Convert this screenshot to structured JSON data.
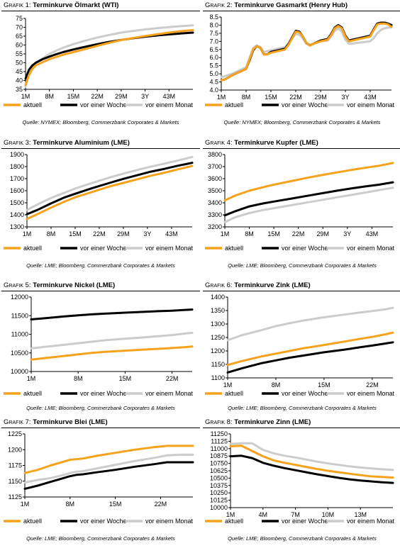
{
  "legend_labels": [
    "aktuell",
    "vor einer Woche",
    "vor einem Monat"
  ],
  "series_colors": {
    "aktuell": "#f7a21c",
    "vor einer Woche": "#000000",
    "vor einem Monat": "#cccccc"
  },
  "panels": [
    {
      "prefix": "Grafik 1: ",
      "title": "Terminkurve Ölmarkt (WTI)",
      "source": "Quelle: NYMEX; Bloomberg, Commerzbank Corporates & Markets"
    },
    {
      "prefix": "Grafik 2: ",
      "title": "Terminkurve Gasmarkt (Henry Hub)",
      "source": "Quelle: NYMEX; Bloomberg, Commerzbank Corporates & Markets"
    },
    {
      "prefix": "Grafik 3: ",
      "title": "Terminkurve Aluminium (LME)",
      "source": "Quelle: LME; Bloomberg, Commerzbank Corporates & Markets"
    },
    {
      "prefix": "Grafik 4: ",
      "title": "Terminkurve Kupfer (LME)",
      "source": "Quelle: LME; Bloomberg, Commerzbank Corporates & Markets"
    },
    {
      "prefix": "Grafik 5: ",
      "title": "Terminkurve Nickel (LME)",
      "source": "Quelle: LME; Bloomberg, Commerzbank Corporates & Markets"
    },
    {
      "prefix": "Grafik 6: ",
      "title": "Terminkurve Zink (LME)",
      "source": "Quelle: LME; Bloomberg, Commerzbank Corporates & Markets"
    },
    {
      "prefix": "Grafik 7: ",
      "title": "Terminkurve Blei (LME)",
      "source": "Quelle: LME; Bloomberg, Commerzbank Corporates & Markets"
    },
    {
      "prefix": "Grafik 8: ",
      "title": "Terminkurve Zinn (LME)",
      "source": "Quelle: LME; Bloomberg, Commerzbank Corporates & Markets"
    }
  ],
  "chart_data": [
    {
      "type": "line",
      "ylim": [
        35,
        75
      ],
      "yticks": [
        35,
        40,
        45,
        50,
        55,
        60,
        65,
        70,
        75
      ],
      "x_labels": [
        "1M",
        "8M",
        "15M",
        "22M",
        "29M",
        "3Y",
        "43M"
      ],
      "x": [
        1,
        2,
        3,
        4,
        6,
        8,
        10,
        12,
        15,
        18,
        22,
        25,
        29,
        32,
        36,
        40,
        43,
        47,
        50
      ],
      "series": [
        {
          "name": "aktuell",
          "values": [
            37.5,
            43,
            46.5,
            48.5,
            50.3,
            52,
            53.3,
            54.5,
            56,
            57.5,
            59.5,
            61,
            62.8,
            63.8,
            65.1,
            66.2,
            67,
            67.9,
            68.4
          ]
        },
        {
          "name": "vor einer Woche",
          "values": [
            41,
            46,
            48.5,
            50,
            52,
            53.5,
            54.8,
            56,
            57.5,
            58.8,
            60.5,
            61.6,
            62.9,
            63.7,
            64.7,
            65.5,
            66,
            66.6,
            67
          ]
        },
        {
          "name": "vor einem Monat",
          "values": [
            36.5,
            44,
            48,
            50,
            52.5,
            55,
            56.8,
            58.5,
            60.5,
            62.2,
            64.2,
            65.5,
            67,
            67.8,
            68.8,
            69.6,
            70.1,
            70.7,
            71.1
          ]
        }
      ]
    },
    {
      "type": "line",
      "ylim": [
        4.0,
        8.5
      ],
      "yticks": [
        4.0,
        4.5,
        5.0,
        5.5,
        6.0,
        6.5,
        7.0,
        7.5,
        8.0,
        8.5
      ],
      "x_labels": [
        "1M",
        "8M",
        "15M",
        "22M",
        "29M",
        "3Y",
        "43M"
      ],
      "x": [
        1,
        2,
        4,
        6,
        8,
        9,
        10,
        11,
        12,
        13,
        14,
        15,
        17,
        19,
        20,
        21,
        22,
        23,
        24,
        25,
        26,
        27,
        29,
        31,
        32,
        33,
        34,
        35,
        36,
        37,
        38,
        39,
        41,
        43,
        44,
        45,
        46,
        47,
        48,
        49
      ],
      "series": [
        {
          "name": "aktuell",
          "values": [
            4.6,
            4.65,
            4.9,
            5.1,
            5.3,
            5.9,
            6.5,
            6.7,
            6.6,
            6.2,
            6.2,
            6.3,
            6.4,
            6.5,
            6.8,
            7.2,
            7.6,
            7.55,
            7.3,
            6.9,
            6.75,
            6.85,
            7.0,
            7.1,
            7.4,
            7.8,
            7.95,
            7.8,
            7.3,
            7.0,
            7.05,
            7.1,
            7.2,
            7.3,
            7.7,
            8.05,
            8.1,
            8.1,
            8.05,
            7.9
          ]
        },
        {
          "name": "vor einer Woche",
          "values": [
            4.6,
            4.65,
            4.9,
            5.1,
            5.3,
            5.85,
            6.45,
            6.7,
            6.6,
            6.2,
            6.2,
            6.35,
            6.45,
            6.55,
            6.85,
            7.25,
            7.65,
            7.6,
            7.3,
            6.9,
            6.75,
            6.85,
            7.05,
            7.15,
            7.45,
            7.85,
            8.0,
            7.85,
            7.35,
            7.05,
            7.1,
            7.15,
            7.25,
            7.35,
            7.75,
            8.1,
            8.15,
            8.15,
            8.1,
            8.0
          ]
        },
        {
          "name": "vor einem Monat",
          "values": [
            4.8,
            4.85,
            5.0,
            5.2,
            5.4,
            6.0,
            6.6,
            6.75,
            6.65,
            6.35,
            6.4,
            6.45,
            6.55,
            6.65,
            6.9,
            7.2,
            7.45,
            7.4,
            7.2,
            6.85,
            6.8,
            6.85,
            7.0,
            7.05,
            7.3,
            7.65,
            7.8,
            7.6,
            7.1,
            6.85,
            6.85,
            6.9,
            6.95,
            7.0,
            7.2,
            7.5,
            7.7,
            7.8,
            7.85,
            7.85
          ]
        }
      ]
    },
    {
      "type": "line",
      "ylim": [
        1300,
        1900
      ],
      "yticks": [
        1300,
        1400,
        1500,
        1600,
        1700,
        1800,
        1900
      ],
      "x_labels": [
        "1M",
        "8M",
        "15M",
        "22M",
        "29M",
        "3Y",
        "43M"
      ],
      "x": [
        1,
        4,
        8,
        12,
        15,
        20,
        25,
        29,
        33,
        37,
        41,
        45,
        49
      ],
      "series": [
        {
          "name": "aktuell",
          "values": [
            1365,
            1405,
            1460,
            1510,
            1545,
            1590,
            1635,
            1665,
            1695,
            1725,
            1750,
            1778,
            1805
          ]
        },
        {
          "name": "vor einer Woche",
          "values": [
            1405,
            1440,
            1495,
            1545,
            1575,
            1622,
            1665,
            1698,
            1728,
            1758,
            1782,
            1808,
            1832
          ]
        },
        {
          "name": "vor einem Monat",
          "values": [
            1440,
            1485,
            1540,
            1585,
            1618,
            1665,
            1710,
            1742,
            1772,
            1800,
            1825,
            1852,
            1880
          ]
        }
      ]
    },
    {
      "type": "line",
      "ylim": [
        3200,
        3800
      ],
      "yticks": [
        3200,
        3300,
        3400,
        3500,
        3600,
        3700,
        3800
      ],
      "x_labels": [
        "1M",
        "8M",
        "15M",
        "22M",
        "29M",
        "3Y",
        "43M"
      ],
      "x": [
        1,
        4,
        8,
        12,
        15,
        20,
        25,
        29,
        33,
        37,
        41,
        45,
        49
      ],
      "series": [
        {
          "name": "aktuell",
          "values": [
            3420,
            3460,
            3500,
            3530,
            3550,
            3580,
            3610,
            3632,
            3652,
            3672,
            3690,
            3707,
            3730
          ]
        },
        {
          "name": "vor einer Woche",
          "values": [
            3295,
            3330,
            3370,
            3395,
            3410,
            3435,
            3460,
            3480,
            3500,
            3518,
            3535,
            3550,
            3570
          ]
        },
        {
          "name": "vor einem Monat",
          "values": [
            3240,
            3280,
            3315,
            3340,
            3355,
            3380,
            3405,
            3425,
            3445,
            3465,
            3485,
            3505,
            3525
          ]
        }
      ]
    },
    {
      "type": "line",
      "ylim": [
        10000,
        12000
      ],
      "yticks": [
        10000,
        10500,
        11000,
        11500,
        12000
      ],
      "x_labels": [
        "1M",
        "8M",
        "15M",
        "22M"
      ],
      "x": [
        1,
        3,
        6,
        8,
        10,
        12,
        15,
        18,
        20,
        22,
        24,
        25
      ],
      "series": [
        {
          "name": "aktuell",
          "values": [
            10320,
            10360,
            10420,
            10460,
            10500,
            10530,
            10560,
            10590,
            10610,
            10630,
            10655,
            10670
          ]
        },
        {
          "name": "vor einer Woche",
          "values": [
            11400,
            11430,
            11480,
            11510,
            11535,
            11555,
            11580,
            11605,
            11620,
            11635,
            11655,
            11665
          ]
        },
        {
          "name": "vor einem Monat",
          "values": [
            10620,
            10660,
            10720,
            10760,
            10800,
            10840,
            10880,
            10920,
            10950,
            10980,
            11020,
            11040
          ]
        }
      ]
    },
    {
      "type": "line",
      "ylim": [
        1100,
        1400
      ],
      "yticks": [
        1100,
        1150,
        1200,
        1250,
        1300,
        1350,
        1400
      ],
      "x_labels": [
        "1M",
        "8M",
        "15M",
        "22M"
      ],
      "x": [
        1,
        3,
        6,
        8,
        10,
        12,
        15,
        18,
        20,
        22,
        24,
        25
      ],
      "series": [
        {
          "name": "aktuell",
          "values": [
            1148,
            1162,
            1180,
            1190,
            1200,
            1210,
            1222,
            1235,
            1244,
            1252,
            1262,
            1268
          ]
        },
        {
          "name": "vor einer Woche",
          "values": [
            1120,
            1135,
            1155,
            1165,
            1175,
            1183,
            1195,
            1205,
            1213,
            1220,
            1228,
            1232
          ]
        },
        {
          "name": "vor einem Monat",
          "values": [
            1240,
            1258,
            1278,
            1292,
            1303,
            1313,
            1325,
            1335,
            1342,
            1348,
            1355,
            1360
          ]
        }
      ]
    },
    {
      "type": "line",
      "ylim": [
        1125,
        1225
      ],
      "yticks": [
        1125,
        1150,
        1175,
        1200,
        1225
      ],
      "x_labels": [
        "1M",
        "8M",
        "15M",
        "22M"
      ],
      "x": [
        1,
        3,
        5,
        7,
        8,
        9,
        10,
        12,
        15,
        18,
        21,
        23,
        25,
        27
      ],
      "series": [
        {
          "name": "aktuell",
          "values": [
            1163,
            1168,
            1175,
            1181,
            1184,
            1185,
            1186,
            1190,
            1195,
            1200,
            1204,
            1206,
            1206,
            1206
          ]
        },
        {
          "name": "vor einer Woche",
          "values": [
            1138,
            1143,
            1149,
            1155,
            1158,
            1160,
            1161,
            1164,
            1168,
            1173,
            1177,
            1180,
            1180,
            1180
          ]
        },
        {
          "name": "vor einem Monat",
          "values": [
            1148,
            1152,
            1155,
            1160,
            1163,
            1165,
            1166,
            1170,
            1176,
            1182,
            1187,
            1191,
            1192,
            1192
          ]
        }
      ]
    },
    {
      "type": "line",
      "ylim": [
        10000,
        11250
      ],
      "yticks": [
        10000,
        10125,
        10250,
        10375,
        10500,
        10625,
        10750,
        10875,
        11000,
        11125,
        11250
      ],
      "x_labels": [
        "1M",
        "4M",
        "7M",
        "10M",
        "13M"
      ],
      "x": [
        1,
        2,
        3,
        4,
        5,
        6,
        7,
        8,
        9,
        10,
        11,
        12,
        13,
        14,
        15,
        16
      ],
      "series": [
        {
          "name": "aktuell",
          "values": [
            11040,
            11050,
            10960,
            10870,
            10800,
            10760,
            10725,
            10690,
            10655,
            10625,
            10600,
            10575,
            10550,
            10530,
            10520,
            10510
          ]
        },
        {
          "name": "vor einer Woche",
          "values": [
            10870,
            10880,
            10840,
            10760,
            10710,
            10670,
            10635,
            10600,
            10565,
            10535,
            10505,
            10480,
            10460,
            10445,
            10430,
            10420
          ]
        },
        {
          "name": "vor einem Monat",
          "values": [
            11080,
            11090,
            11090,
            10980,
            10920,
            10880,
            10850,
            10815,
            10780,
            10750,
            10725,
            10700,
            10680,
            10665,
            10650,
            10640
          ]
        }
      ]
    }
  ]
}
